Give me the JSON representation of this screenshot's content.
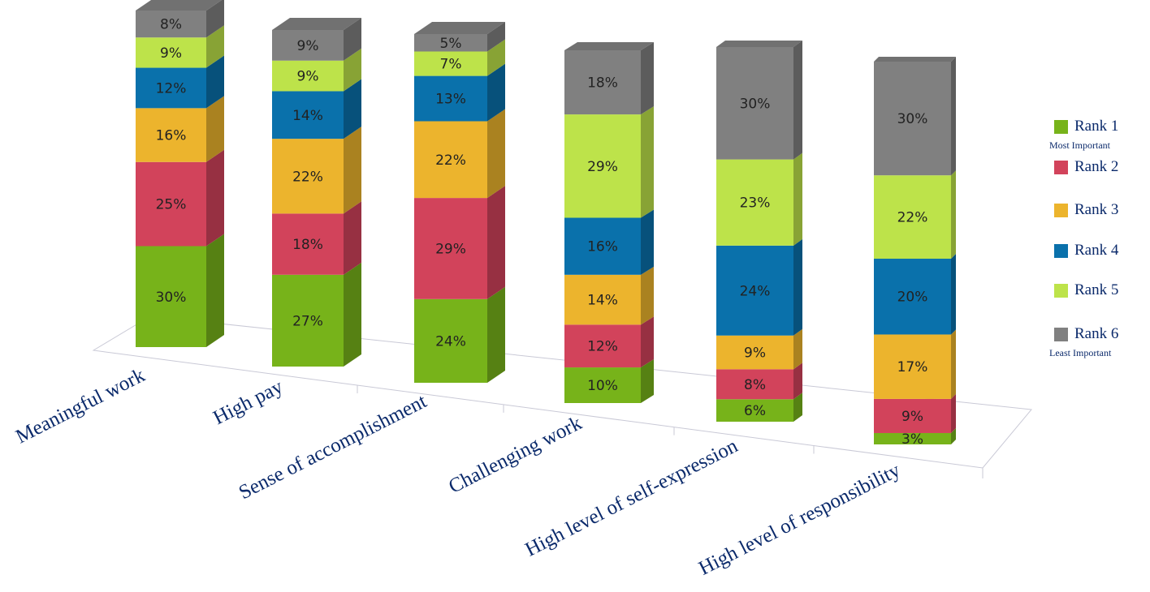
{
  "chart_data": {
    "type": "bar",
    "stacked": true,
    "three_d": true,
    "title": "",
    "xlabel": "",
    "ylabel": "",
    "grid": false,
    "legend_position": "right",
    "categories": [
      "Meaningful work",
      "High pay",
      "Sense of accomplishment",
      "Challenging work",
      "High level of self-expression",
      "High level of responsibility"
    ],
    "series": [
      {
        "name": "Rank 1",
        "note": "Most Important",
        "color": "#77b31a",
        "values": [
          30,
          27,
          24,
          10,
          6,
          3
        ],
        "labels": [
          "30%",
          "27%",
          "24%",
          "10%",
          "6%",
          "3%"
        ]
      },
      {
        "name": "Rank 2",
        "color": "#d2435b",
        "values": [
          25,
          18,
          29,
          12,
          8,
          9
        ],
        "labels": [
          "25%",
          "18%",
          "29%",
          "12%",
          "8%",
          "9%"
        ]
      },
      {
        "name": "Rank 3",
        "color": "#ecb42d",
        "values": [
          16,
          22,
          22,
          14,
          9,
          17
        ],
        "labels": [
          "16%",
          "22%",
          "22%",
          "14%",
          "9%",
          "17%"
        ]
      },
      {
        "name": "Rank 4",
        "color": "#0a71ab",
        "values": [
          12,
          14,
          13,
          16,
          24,
          20
        ],
        "labels": [
          "12%",
          "14%",
          "13%",
          "16%",
          "24%",
          "20%"
        ]
      },
      {
        "name": "Rank 5",
        "color": "#bde34a",
        "values": [
          9,
          9,
          7,
          29,
          23,
          22
        ],
        "labels": [
          "9%",
          "9%",
          "7%",
          "29%",
          "23%",
          "22%"
        ]
      },
      {
        "name": "Rank 6",
        "note": "Least Important",
        "color": "#808080",
        "values": [
          8,
          9,
          5,
          18,
          30,
          30
        ],
        "labels": [
          "8%",
          "9%",
          "5%",
          "18%",
          "30%",
          "30%"
        ]
      }
    ]
  }
}
